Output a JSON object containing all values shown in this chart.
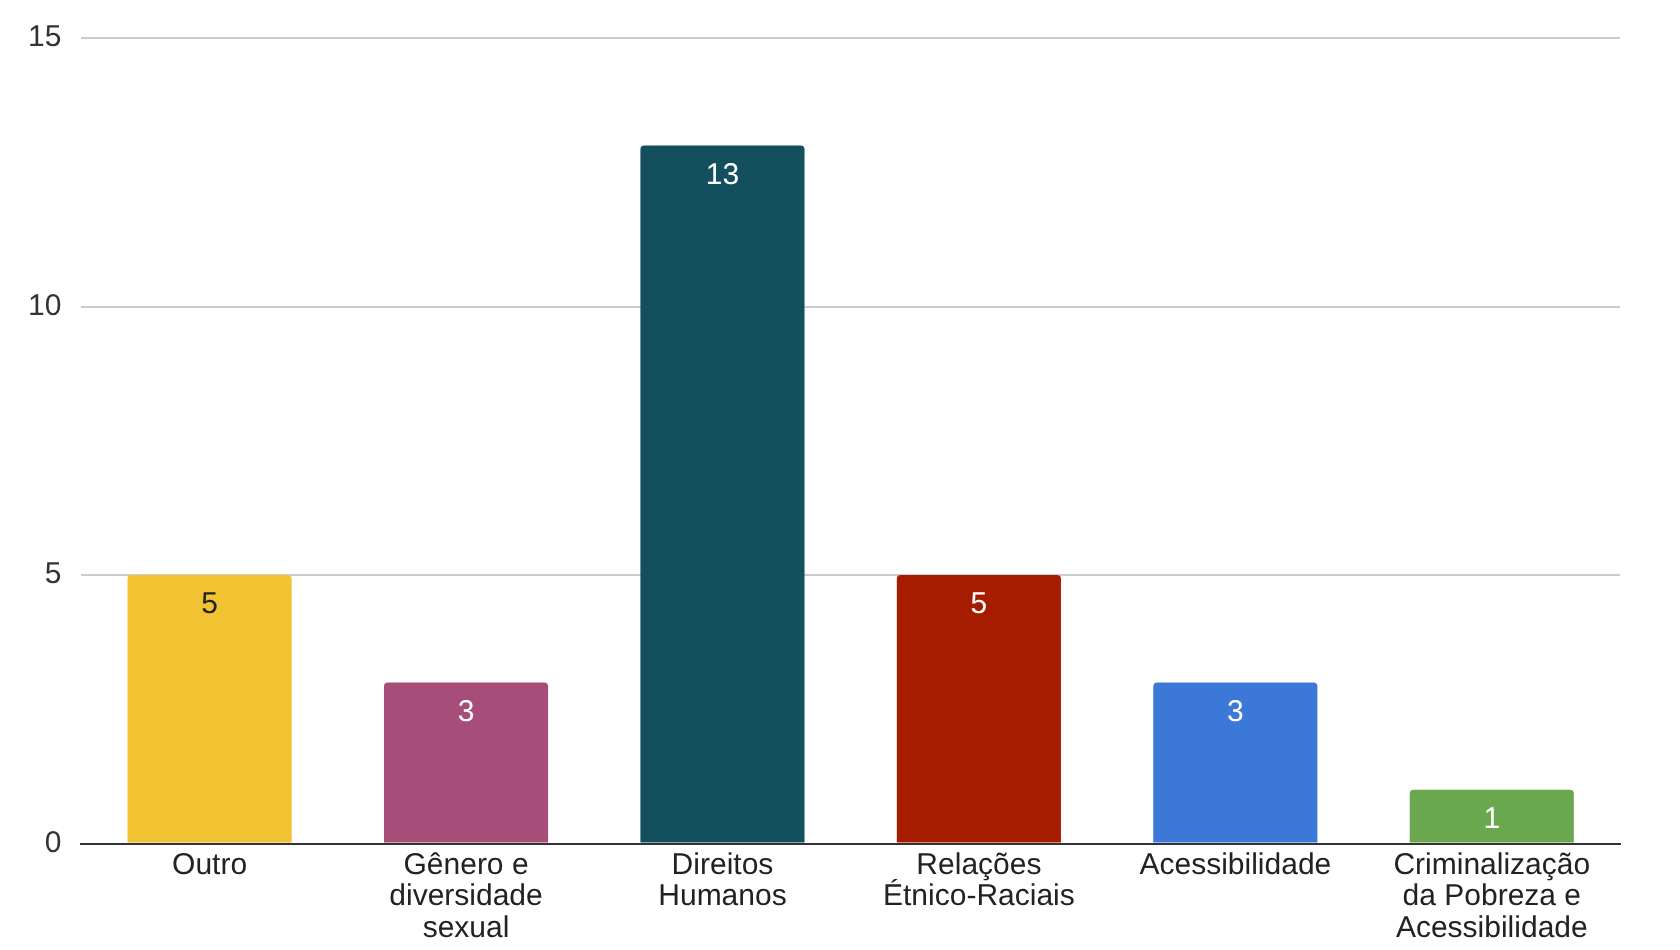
{
  "chart_data": {
    "type": "bar",
    "categories": [
      "Outro",
      "Gênero e diversidade sexual",
      "Direitos Humanos",
      "Relações Étnico-Raciais",
      "Acessibilidade",
      "Criminalização da Pobreza e Acessibilidade"
    ],
    "values": [
      5,
      3,
      13,
      5,
      3,
      1
    ],
    "colors": [
      "#f1c232",
      "#a64d79",
      "#134f5c",
      "#a61c00",
      "#3c78d8",
      "#6aa84f"
    ],
    "ylim": [
      0,
      15
    ],
    "yticks": [
      0,
      5,
      10,
      15
    ],
    "grid": "y",
    "legend": false,
    "data_labels": true
  }
}
